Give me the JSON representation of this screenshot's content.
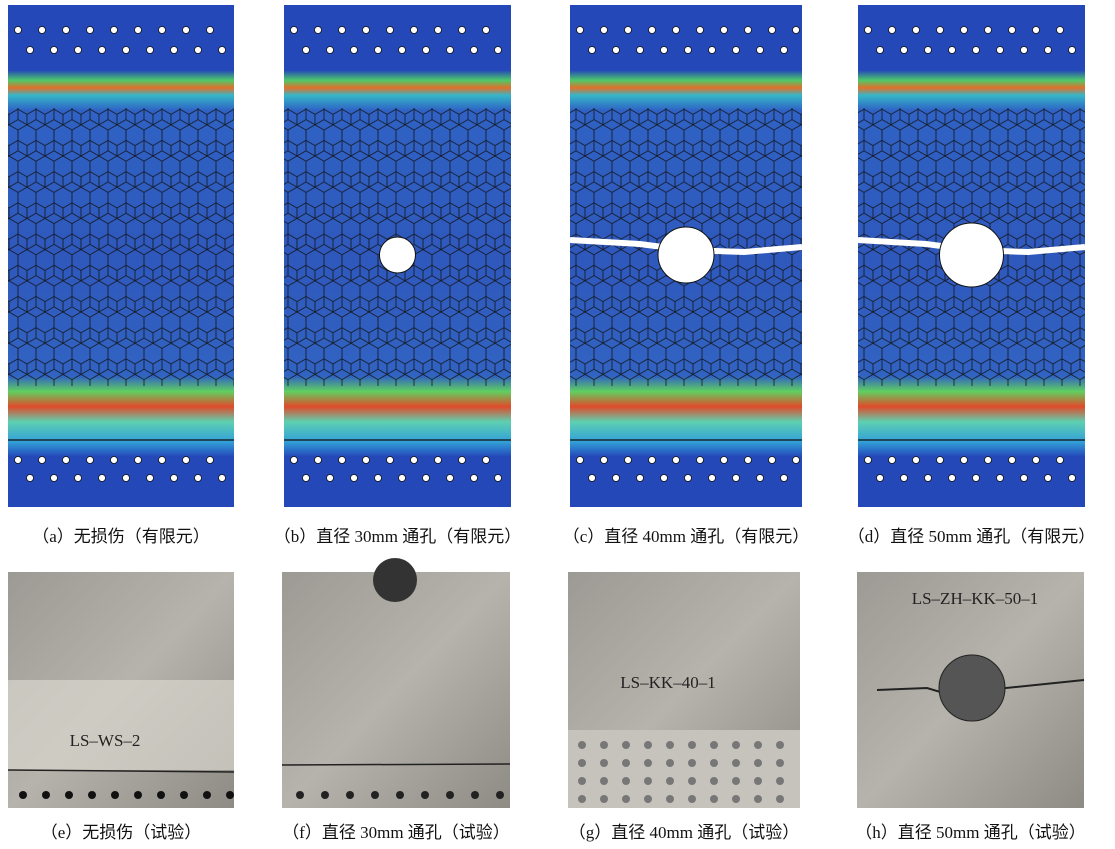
{
  "panels": [
    {
      "caption": "（a）无损伤（有限元）"
    },
    {
      "caption": "（b）直径 30mm 通孔（有限元）"
    },
    {
      "caption": "（c）直径 40mm 通孔（有限元）"
    },
    {
      "caption": "（d）直径 50mm 通孔（有限元）"
    },
    {
      "caption": "（e）无损伤（试验）",
      "label": "LS–WS–2"
    },
    {
      "caption": "（f）直径 30mm 通孔（试验）"
    },
    {
      "caption": "（g）直径 40mm 通孔（试验）",
      "label": "LS–KK–40–1"
    },
    {
      "caption": "（h）直径 50mm 通孔（试验）",
      "label": "LS–ZH–KK–50–1"
    }
  ]
}
